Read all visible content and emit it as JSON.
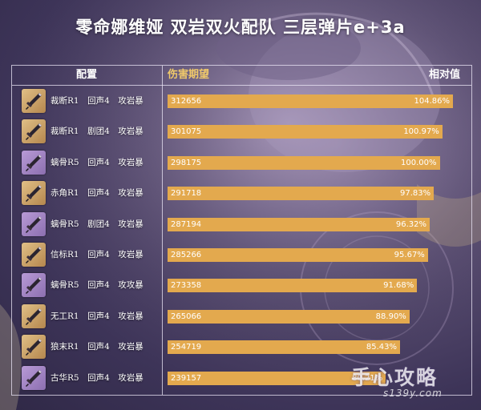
{
  "title": "零命娜维娅 双岩双火配队 三层弹片e+3a",
  "headers": {
    "config": "配置",
    "damage": "伤害期望",
    "relative": "相对值"
  },
  "colors": {
    "bar": "#e3a94e",
    "damage_header": "#f0c96a",
    "icon_gold": "#b5874e",
    "icon_purple": "#8c6fb0"
  },
  "chart_data": {
    "type": "bar",
    "orientation": "horizontal",
    "title": "零命娜维娅 双岩双火配队 三层弹片e+3a",
    "xlim": [
      0,
      312656
    ],
    "rows": [
      {
        "icon": "greatsword-gold-icon",
        "rarity": "gold",
        "config": "裁断R1　回声4　攻岩暴",
        "damage": "312656",
        "value": 312656,
        "relative": "104.86%"
      },
      {
        "icon": "greatsword-gold-icon",
        "rarity": "gold",
        "config": "裁断R1　剧团4　攻岩暴",
        "damage": "301075",
        "value": 301075,
        "relative": "100.97%"
      },
      {
        "icon": "greatsword-purple-icon",
        "rarity": "purple",
        "config": "螭骨R5　回声4　攻岩暴",
        "damage": "298175",
        "value": 298175,
        "relative": "100.00%"
      },
      {
        "icon": "greatsword-gold-icon",
        "rarity": "gold",
        "config": "赤角R1　回声4　攻岩暴",
        "damage": "291718",
        "value": 291718,
        "relative": "97.83%"
      },
      {
        "icon": "greatsword-purple-icon",
        "rarity": "purple",
        "config": "螭骨R5　剧团4　攻岩暴",
        "damage": "287194",
        "value": 287194,
        "relative": "96.32%"
      },
      {
        "icon": "greatsword-gold-icon",
        "rarity": "gold",
        "config": "信标R1　回声4　攻岩暴",
        "damage": "285266",
        "value": 285266,
        "relative": "95.67%"
      },
      {
        "icon": "greatsword-purple-icon",
        "rarity": "purple",
        "config": "螭骨R5　回声4　攻攻暴",
        "damage": "273358",
        "value": 273358,
        "relative": "91.68%"
      },
      {
        "icon": "greatsword-gold-icon",
        "rarity": "gold",
        "config": "无工R1　回声4　攻岩暴",
        "damage": "265066",
        "value": 265066,
        "relative": "88.90%"
      },
      {
        "icon": "greatsword-gold-icon",
        "rarity": "gold",
        "config": "狼末R1　回声4　攻岩暴",
        "damage": "254719",
        "value": 254719,
        "relative": "85.43%"
      },
      {
        "icon": "greatsword-purple-icon",
        "rarity": "purple",
        "config": "古华R5　回声4　攻岩暴",
        "damage": "239157",
        "value": 239157,
        "relative": "80.21%"
      }
    ]
  },
  "watermark": {
    "main": "手心攻略",
    "sub": "s139y.com"
  }
}
